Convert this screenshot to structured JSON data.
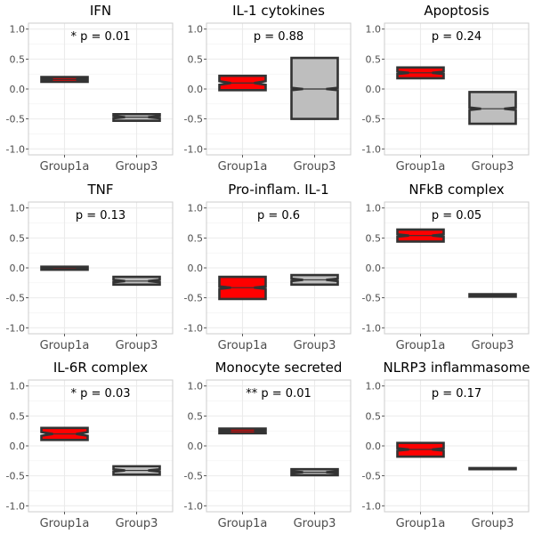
{
  "chart_data": [
    {
      "type": "boxplot",
      "title": "IFN",
      "annotation": "* p = 0.01",
      "categories": [
        "Group1a",
        "Group3"
      ],
      "ylim": [
        -1.1,
        1.1
      ],
      "yticks": [
        "-1.0",
        "-0.5",
        "0.0",
        "0.5",
        "1.0"
      ],
      "grid": true,
      "boxes": [
        {
          "group": "Group1a",
          "color": "#ff0000",
          "q1": 0.12,
          "median": 0.16,
          "q3": 0.2,
          "notch_lo": 0.15,
          "notch_hi": 0.17
        },
        {
          "group": "Group3",
          "color": "#bebebe",
          "q1": -0.53,
          "median": -0.47,
          "q3": -0.42,
          "notch_lo": -0.49,
          "notch_hi": -0.45
        }
      ]
    },
    {
      "type": "boxplot",
      "title": "IL-1 cytokines",
      "annotation": "p = 0.88",
      "categories": [
        "Group1a",
        "Group3"
      ],
      "ylim": [
        -1.1,
        1.1
      ],
      "yticks": [
        "-1.0",
        "-0.5",
        "0.0",
        "0.5",
        "1.0"
      ],
      "grid": true,
      "boxes": [
        {
          "group": "Group1a",
          "color": "#ff0000",
          "q1": -0.02,
          "median": 0.1,
          "q3": 0.22,
          "notch_lo": 0.07,
          "notch_hi": 0.13
        },
        {
          "group": "Group3",
          "color": "#bebebe",
          "q1": -0.5,
          "median": 0.0,
          "q3": 0.52,
          "notch_lo": -0.02,
          "notch_hi": 0.02
        }
      ]
    },
    {
      "type": "boxplot",
      "title": "Apoptosis",
      "annotation": "p = 0.24",
      "categories": [
        "Group1a",
        "Group3"
      ],
      "ylim": [
        -1.1,
        1.1
      ],
      "yticks": [
        "-1.0",
        "-0.5",
        "0.0",
        "0.5",
        "1.0"
      ],
      "grid": true,
      "boxes": [
        {
          "group": "Group1a",
          "color": "#ff0000",
          "q1": 0.18,
          "median": 0.27,
          "q3": 0.36,
          "notch_lo": 0.25,
          "notch_hi": 0.29
        },
        {
          "group": "Group3",
          "color": "#bebebe",
          "q1": -0.58,
          "median": -0.33,
          "q3": -0.05,
          "notch_lo": -0.35,
          "notch_hi": -0.31
        }
      ]
    },
    {
      "type": "boxplot",
      "title": "TNF",
      "annotation": "p = 0.13",
      "categories": [
        "Group1a",
        "Group3"
      ],
      "ylim": [
        -1.1,
        1.1
      ],
      "yticks": [
        "-1.0",
        "-0.5",
        "0.0",
        "0.5",
        "1.0"
      ],
      "grid": true,
      "boxes": [
        {
          "group": "Group1a",
          "color": "#ff0000",
          "q1": -0.03,
          "median": 0.0,
          "q3": 0.02,
          "notch_lo": -0.005,
          "notch_hi": 0.005
        },
        {
          "group": "Group3",
          "color": "#bebebe",
          "q1": -0.28,
          "median": -0.22,
          "q3": -0.15,
          "notch_lo": -0.24,
          "notch_hi": -0.2
        }
      ]
    },
    {
      "type": "boxplot",
      "title": "Pro-inflam. IL-1",
      "annotation": "p = 0.6",
      "categories": [
        "Group1a",
        "Group3"
      ],
      "ylim": [
        -1.1,
        1.1
      ],
      "yticks": [
        "-1.0",
        "-0.5",
        "0.0",
        "0.5",
        "1.0"
      ],
      "grid": true,
      "boxes": [
        {
          "group": "Group1a",
          "color": "#ff0000",
          "q1": -0.52,
          "median": -0.33,
          "q3": -0.15,
          "notch_lo": -0.35,
          "notch_hi": -0.31
        },
        {
          "group": "Group3",
          "color": "#bebebe",
          "q1": -0.28,
          "median": -0.2,
          "q3": -0.12,
          "notch_lo": -0.22,
          "notch_hi": -0.18
        }
      ]
    },
    {
      "type": "boxplot",
      "title": "NFkB complex",
      "annotation": "p = 0.05",
      "categories": [
        "Group1a",
        "Group3"
      ],
      "ylim": [
        -1.1,
        1.1
      ],
      "yticks": [
        "-1.0",
        "-0.5",
        "0.0",
        "0.5",
        "1.0"
      ],
      "grid": true,
      "boxes": [
        {
          "group": "Group1a",
          "color": "#ff0000",
          "q1": 0.44,
          "median": 0.54,
          "q3": 0.64,
          "notch_lo": 0.52,
          "notch_hi": 0.56
        },
        {
          "group": "Group3",
          "color": "#bebebe",
          "q1": -0.48,
          "median": -0.46,
          "q3": -0.44,
          "notch_lo": -0.465,
          "notch_hi": -0.455
        }
      ]
    },
    {
      "type": "boxplot",
      "title": "IL-6R complex",
      "annotation": "* p = 0.03",
      "categories": [
        "Group1a",
        "Group3"
      ],
      "ylim": [
        -1.1,
        1.1
      ],
      "yticks": [
        "-1.0",
        "-0.5",
        "0.0",
        "0.5",
        "1.0"
      ],
      "grid": true,
      "boxes": [
        {
          "group": "Group1a",
          "color": "#ff0000",
          "q1": 0.1,
          "median": 0.2,
          "q3": 0.3,
          "notch_lo": 0.17,
          "notch_hi": 0.23
        },
        {
          "group": "Group3",
          "color": "#bebebe",
          "q1": -0.48,
          "median": -0.41,
          "q3": -0.34,
          "notch_lo": -0.43,
          "notch_hi": -0.39
        }
      ]
    },
    {
      "type": "boxplot",
      "title": "Monocyte secreted",
      "annotation": "** p = 0.01",
      "categories": [
        "Group1a",
        "Group3"
      ],
      "ylim": [
        -1.1,
        1.1
      ],
      "yticks": [
        "-1.0",
        "-0.5",
        "0.0",
        "0.5",
        "1.0"
      ],
      "grid": true,
      "boxes": [
        {
          "group": "Group1a",
          "color": "#ff0000",
          "q1": 0.21,
          "median": 0.25,
          "q3": 0.29,
          "notch_lo": 0.235,
          "notch_hi": 0.265
        },
        {
          "group": "Group3",
          "color": "#bebebe",
          "q1": -0.49,
          "median": -0.44,
          "q3": -0.39,
          "notch_lo": -0.455,
          "notch_hi": -0.425
        }
      ]
    },
    {
      "type": "boxplot",
      "title": "NLRP3 inflammasome",
      "annotation": "p = 0.17",
      "categories": [
        "Group1a",
        "Group3"
      ],
      "ylim": [
        -1.1,
        1.1
      ],
      "yticks": [
        "-1.0",
        "-0.5",
        "0.0",
        "0.5",
        "1.0"
      ],
      "grid": true,
      "boxes": [
        {
          "group": "Group1a",
          "color": "#ff0000",
          "q1": -0.18,
          "median": -0.06,
          "q3": 0.05,
          "notch_lo": -0.08,
          "notch_hi": -0.04
        },
        {
          "group": "Group3",
          "color": "#bebebe",
          "q1": -0.39,
          "median": -0.38,
          "q3": -0.37,
          "notch_lo": -0.382,
          "notch_hi": -0.378
        }
      ]
    }
  ]
}
